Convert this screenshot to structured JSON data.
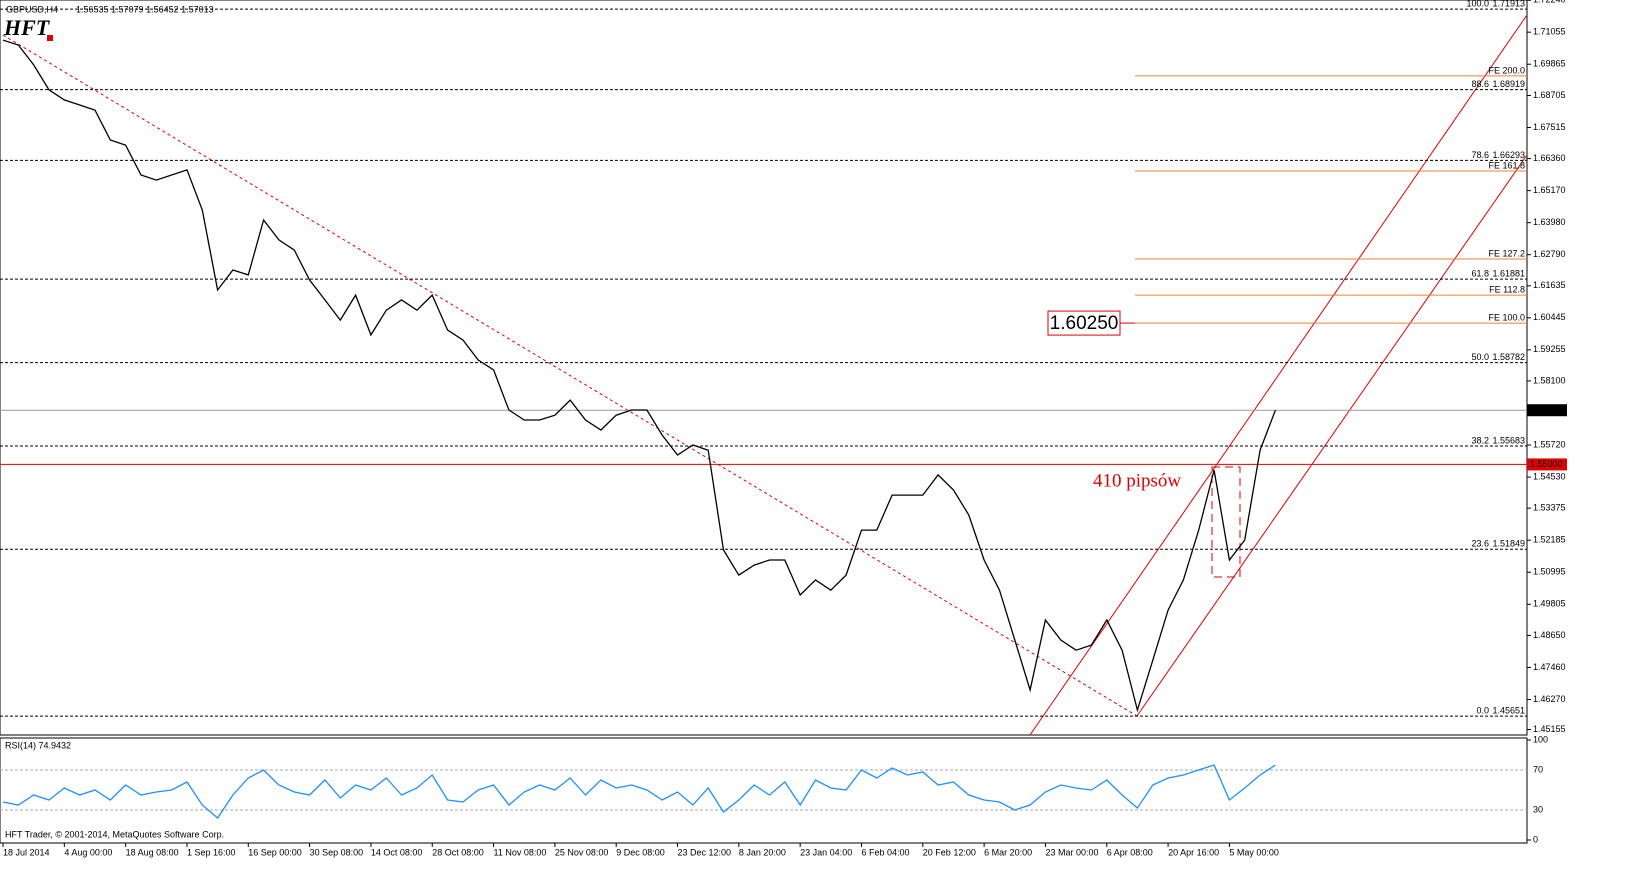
{
  "header": {
    "symbol": "GBPUSD,H4",
    "ohlc": "1.56535 1.57079 1.56452 1.57013",
    "logo": "HFT",
    "footer": "HFT Trader, © 2001-2014, MetaQuotes Software Corp."
  },
  "chart_data": [
    {
      "type": "line",
      "title": "GBPUSD,H4",
      "categories": [
        "18 Jul 2014",
        null,
        null,
        null,
        "4 Aug 00:00",
        null,
        null,
        null,
        "18 Aug 08:00",
        null,
        null,
        null,
        "1 Sep 16:00",
        null,
        null,
        null,
        "16 Sep 00:00",
        null,
        null,
        null,
        "30 Sep 08:00",
        null,
        null,
        null,
        "14 Oct 08:00",
        null,
        null,
        null,
        "28 Oct 08:00",
        null,
        null,
        null,
        "11 Nov 08:00",
        null,
        null,
        null,
        "25 Nov 08:00",
        null,
        null,
        null,
        "9 Dec 08:00",
        null,
        null,
        null,
        "23 Dec 12:00",
        null,
        null,
        null,
        "8 Jan 20:00",
        null,
        null,
        null,
        "23 Jan 04:00",
        null,
        null,
        null,
        "6 Feb 04:00",
        null,
        null,
        null,
        "20 Feb 12:00",
        null,
        null,
        null,
        "6 Mar 20:00",
        null,
        null,
        null,
        "23 Mar 00:00",
        null,
        null,
        null,
        "6 Apr 08:00",
        null,
        null,
        null,
        "20 Apr 16:00",
        null,
        null,
        null,
        "5 May 00:00",
        null,
        null,
        null
      ],
      "series": [
        {
          "name": "GBPUSD",
          "color": "#000000",
          "values": [
            1.7076,
            1.7058,
            1.6984,
            1.6891,
            1.6854,
            1.6835,
            1.6816,
            1.6705,
            1.6686,
            1.6575,
            1.6556,
            1.6575,
            1.6594,
            1.6445,
            1.6148,
            1.6222,
            1.6204,
            1.6408,
            1.6334,
            1.6296,
            1.6185,
            1.6111,
            1.6036,
            1.6129,
            1.5981,
            1.6073,
            1.6111,
            1.6073,
            1.6129,
            1.5999,
            1.5962,
            1.5888,
            1.5851,
            1.5702,
            1.5665,
            1.5665,
            1.5683,
            1.5739,
            1.5665,
            1.5628,
            1.5683,
            1.5702,
            1.5702,
            1.5609,
            1.5535,
            1.5572,
            1.5553,
            1.5182,
            1.5089,
            1.5126,
            1.5145,
            1.5145,
            1.5015,
            1.5071,
            1.5033,
            1.5089,
            1.5256,
            1.5256,
            1.5386,
            1.5386,
            1.5386,
            1.5461,
            1.5405,
            1.5312,
            1.5145,
            1.5033,
            1.4848,
            1.4662,
            1.4922,
            1.4848,
            1.481,
            1.4829,
            1.4922,
            1.481,
            1.4588,
            1.4773,
            1.4959,
            1.5071,
            1.5256,
            1.5479,
            1.5145,
            1.5219,
            1.5553,
            1.57013
          ]
        }
      ],
      "ylim": [
        1.4495,
        1.7225
      ],
      "yticks": [
        {
          "value": 1.7224,
          "label": "1.72240"
        },
        {
          "value": 1.71055,
          "label": "1.71055"
        },
        {
          "value": 1.69865,
          "label": "1.69865"
        },
        {
          "value": 1.68705,
          "label": "1.68705"
        },
        {
          "value": 1.67515,
          "label": "1.67515"
        },
        {
          "value": 1.6636,
          "label": "1.66360"
        },
        {
          "value": 1.6517,
          "label": "1.65170"
        },
        {
          "value": 1.6398,
          "label": "1.63980"
        },
        {
          "value": 1.6279,
          "label": "1.62790"
        },
        {
          "value": 1.61635,
          "label": "1.61635"
        },
        {
          "value": 1.60445,
          "label": "1.60445"
        },
        {
          "value": 1.59255,
          "label": "1.59255"
        },
        {
          "value": 1.581,
          "label": "1.58100"
        },
        {
          "value": 1.5572,
          "label": "1.55720"
        },
        {
          "value": 1.5453,
          "label": "1.54530"
        },
        {
          "value": 1.53375,
          "label": "1.53375"
        },
        {
          "value": 1.52185,
          "label": "1.52185"
        },
        {
          "value": 1.50995,
          "label": "1.50995"
        },
        {
          "value": 1.49805,
          "label": "1.49805"
        },
        {
          "value": 1.4865,
          "label": "1.48650"
        },
        {
          "value": 1.4746,
          "label": "1.47460"
        },
        {
          "value": 1.4627,
          "label": "1.46270"
        },
        {
          "value": 1.45155,
          "label": "1.45155"
        }
      ],
      "fib_levels": [
        {
          "name": "100.0",
          "value": 1.71913
        },
        {
          "name": "88.6",
          "value": 1.68919
        },
        {
          "name": "78.6",
          "value": 1.66293
        },
        {
          "name": "61.8",
          "value": 1.61881
        },
        {
          "name": "50.0",
          "value": 1.58782
        },
        {
          "name": "38.2",
          "value": 1.55683
        },
        {
          "name": "23.6",
          "value": 1.51849
        },
        {
          "name": "0.0",
          "value": 1.45651
        }
      ],
      "fe_levels": [
        {
          "name": "FE 200.0",
          "value": 1.6943
        },
        {
          "name": "FE 161.8",
          "value": 1.659
        },
        {
          "name": "FE 127.2",
          "value": 1.6263
        },
        {
          "name": "FE 112.8",
          "value": 1.6129
        },
        {
          "name": "FE 100.0",
          "value": 1.6025
        }
      ],
      "fe_color": "#f08030",
      "current_price": 1.57013,
      "support": {
        "value": 1.55,
        "label": "1.55000"
      },
      "target": {
        "value": 1.6025,
        "label": "1.60250"
      },
      "annotation": "410 pipsów"
    },
    {
      "type": "line",
      "title": "RSI(14) 74.9432",
      "series": [
        {
          "name": "RSI(14)",
          "color": "#1e90ff",
          "values": [
            38,
            35,
            45,
            40,
            52,
            45,
            50,
            40,
            55,
            45,
            48,
            50,
            58,
            35,
            22,
            45,
            62,
            70,
            55,
            48,
            45,
            60,
            42,
            55,
            50,
            62,
            45,
            52,
            65,
            40,
            38,
            50,
            55,
            35,
            48,
            55,
            50,
            62,
            45,
            60,
            52,
            55,
            50,
            40,
            48,
            35,
            52,
            28,
            40,
            55,
            45,
            58,
            35,
            60,
            52,
            50,
            70,
            62,
            72,
            65,
            68,
            55,
            58,
            45,
            40,
            38,
            30,
            35,
            48,
            55,
            52,
            50,
            60,
            45,
            32,
            55,
            62,
            65,
            70,
            75,
            40,
            52,
            65,
            74.9432
          ]
        }
      ],
      "ylim": [
        0,
        100
      ],
      "yticks": [
        0,
        30,
        70,
        100
      ]
    }
  ]
}
